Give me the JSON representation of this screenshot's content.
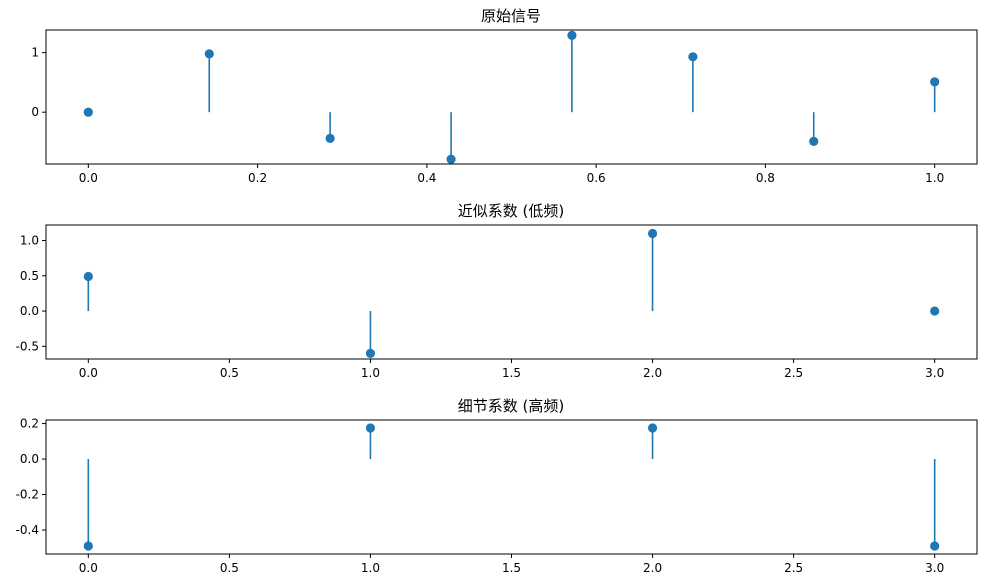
{
  "chart_data": [
    {
      "type": "stem",
      "title": "原始信号",
      "xlabel": "",
      "ylabel": "",
      "xlim": [
        -0.05,
        1.05
      ],
      "ylim": [
        -0.87,
        1.38
      ],
      "xticks": [
        0.0,
        0.2,
        0.4,
        0.6,
        0.8,
        1.0
      ],
      "xtick_labels": [
        "0.0",
        "0.2",
        "0.4",
        "0.6",
        "0.8",
        "1.0"
      ],
      "yticks": [
        0,
        1
      ],
      "ytick_labels": [
        "0",
        "1"
      ],
      "x": [
        0.0,
        0.1429,
        0.2857,
        0.4286,
        0.5714,
        0.7143,
        0.8571,
        1.0
      ],
      "values": [
        0.0,
        0.98,
        -0.44,
        -0.79,
        1.29,
        0.93,
        -0.49,
        0.51
      ],
      "color": "#1f77b4"
    },
    {
      "type": "stem",
      "title": "近似系数 (低频)",
      "xlabel": "",
      "ylabel": "",
      "xlim": [
        -0.15,
        3.15
      ],
      "ylim": [
        -0.68,
        1.22
      ],
      "xticks": [
        0.0,
        0.5,
        1.0,
        1.5,
        2.0,
        2.5,
        3.0
      ],
      "xtick_labels": [
        "0.0",
        "0.5",
        "1.0",
        "1.5",
        "2.0",
        "2.5",
        "3.0"
      ],
      "yticks": [
        -0.5,
        0.0,
        0.5,
        1.0
      ],
      "ytick_labels": [
        "-0.5",
        "0.0",
        "0.5",
        "1.0"
      ],
      "x": [
        0,
        1,
        2,
        3
      ],
      "values": [
        0.49,
        -0.6,
        1.1,
        0.0
      ],
      "color": "#1f77b4"
    },
    {
      "type": "stem",
      "title": "细节系数 (高频)",
      "xlabel": "",
      "ylabel": "",
      "xlim": [
        -0.15,
        3.15
      ],
      "ylim": [
        -0.535,
        0.22
      ],
      "xticks": [
        0.0,
        0.5,
        1.0,
        1.5,
        2.0,
        2.5,
        3.0
      ],
      "xtick_labels": [
        "0.0",
        "0.5",
        "1.0",
        "1.5",
        "2.0",
        "2.5",
        "3.0"
      ],
      "yticks": [
        -0.4,
        -0.2,
        0.0,
        0.2
      ],
      "ytick_labels": [
        "-0.4",
        "-0.2",
        "0.0",
        "0.2"
      ],
      "x": [
        0,
        1,
        2,
        3
      ],
      "values": [
        -0.49,
        0.175,
        0.175,
        -0.49
      ],
      "color": "#1f77b4"
    }
  ]
}
